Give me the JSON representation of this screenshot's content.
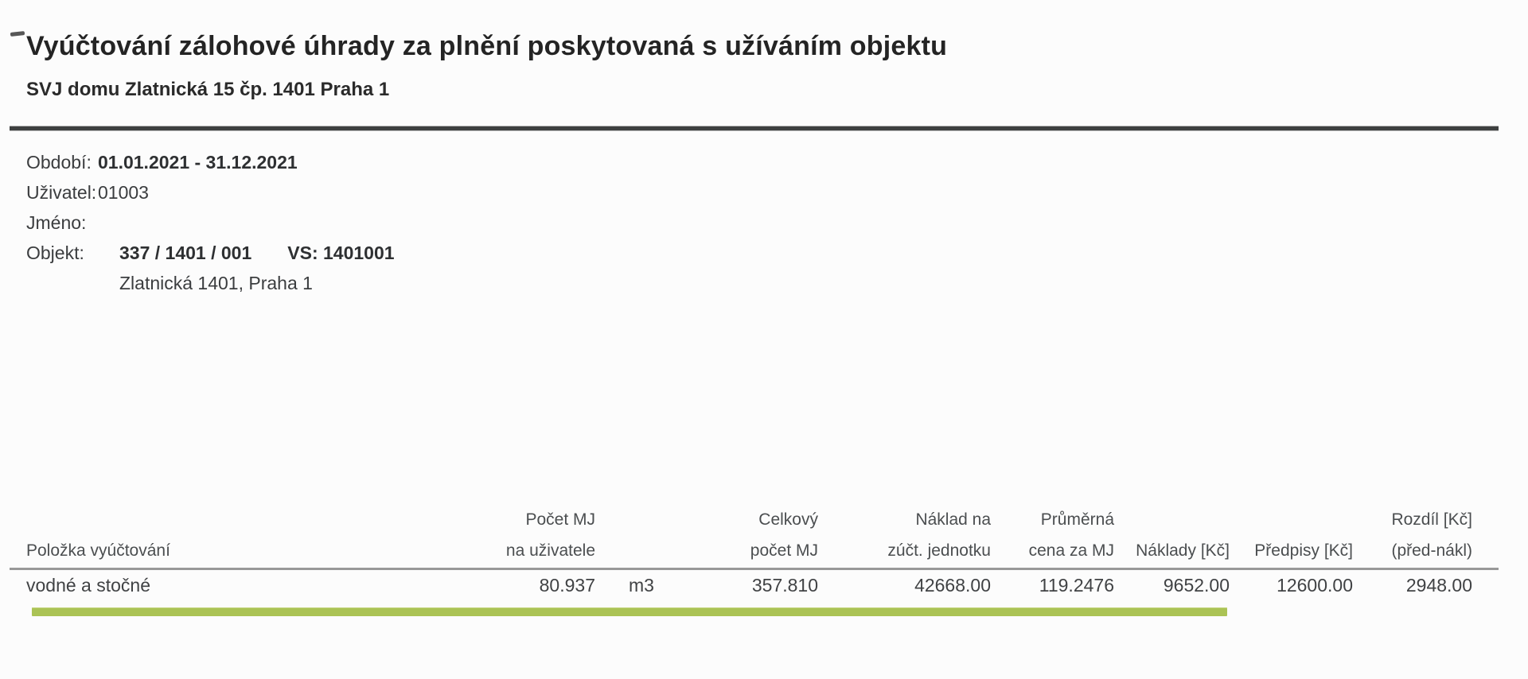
{
  "colors": {
    "accent-green": "#abc355",
    "rule-dark": "#3e4040",
    "rule-gray": "#989898"
  },
  "document": {
    "title": "Vyúčtování zálohové úhrady za plnění poskytovaná s užíváním objektu",
    "subtitle": "SVJ domu Zlatnická 15 čp. 1401 Praha 1"
  },
  "meta": {
    "rows": [
      {
        "label": "Období:",
        "value": "01.01.2021 - 31.12.2021"
      },
      {
        "label": "Uživatel:",
        "value": "01003"
      },
      {
        "label": "Jméno:",
        "value": ""
      },
      {
        "label": "Objekt:",
        "value": "337 / 1401 / 001",
        "vs": "VS: 1401001"
      },
      {
        "label": "",
        "value": "Zlatnická 1401, Praha 1"
      }
    ]
  },
  "table": {
    "columns": [
      {
        "line1": "",
        "line2": "Položka vyúčtování"
      },
      {
        "line1": "Počet MJ",
        "line2": "na uživatele"
      },
      {
        "line1": "",
        "line2": ""
      },
      {
        "line1": "Celkový",
        "line2": "počet MJ"
      },
      {
        "line1": "Náklad na",
        "line2": "zúčt. jednotku"
      },
      {
        "line1": "Průměrná",
        "line2": "cena za MJ"
      },
      {
        "line1": "",
        "line2": "Náklady [Kč]"
      },
      {
        "line1": "",
        "line2": "Předpisy [Kč]"
      },
      {
        "line1": "Rozdíl [Kč]",
        "line2": "(před-nákl)"
      }
    ],
    "rows": [
      {
        "cells": [
          "vodné a stočné",
          "80.937",
          "m3",
          "357.810",
          "42668.00",
          "119.2476",
          "9652.00",
          "12600.00",
          "2948.00"
        ]
      }
    ]
  }
}
